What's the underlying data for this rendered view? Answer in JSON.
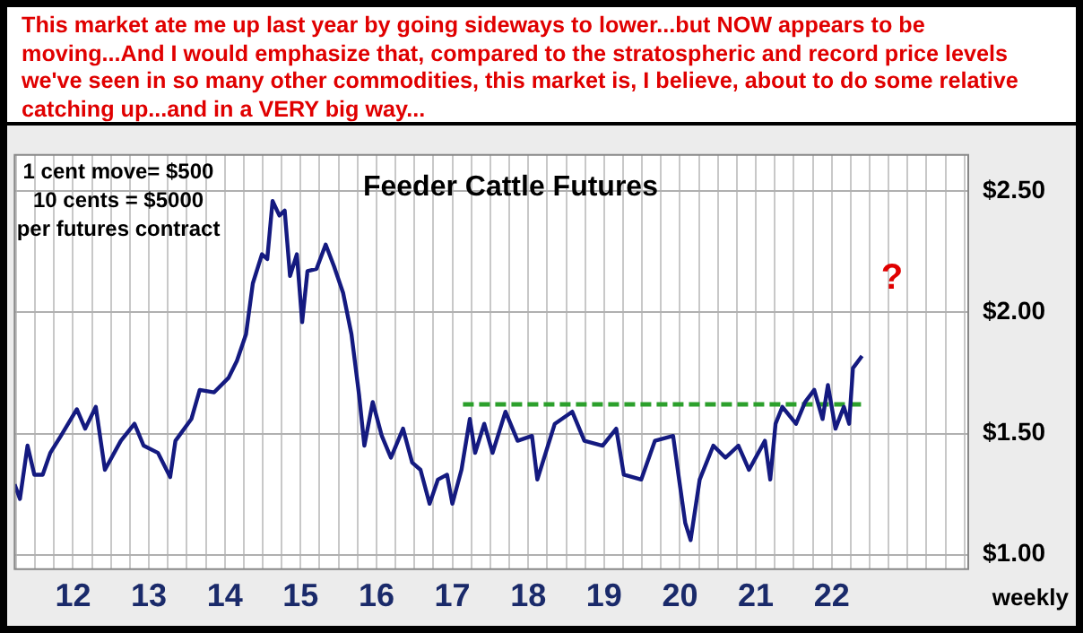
{
  "chart_data": {
    "type": "line",
    "title": "Feeder Cattle Futures",
    "annotations": [
      "This market ate me up last year by going sideways to lower...but NOW appears to be moving...And I would emphasize that, compared to the stratospheric and record price levels we've seen in so many other commodities, this market is, I believe, about to do some relative catching up...and in a VERY big way...",
      "1 cent move= $500",
      "10 cents = $5000",
      "per futures contract",
      "weekly",
      "?"
    ],
    "series": [
      {
        "color": "#141a80",
        "x": [
          2011.23,
          2011.3,
          2011.4,
          2011.49,
          2011.6,
          2011.7,
          2011.84,
          2012.05,
          2012.16,
          2012.3,
          2012.42,
          2012.63,
          2012.81,
          2012.93,
          2013.12,
          2013.28,
          2013.35,
          2013.56,
          2013.67,
          2013.86,
          2014.05,
          2014.16,
          2014.28,
          2014.37,
          2014.49,
          2014.56,
          2014.63,
          2014.72,
          2014.79,
          2014.86,
          2014.95,
          2015.02,
          2015.09,
          2015.21,
          2015.33,
          2015.44,
          2015.56,
          2015.67,
          2015.77,
          2015.84,
          2015.95,
          2016.07,
          2016.19,
          2016.35,
          2016.47,
          2016.58,
          2016.7,
          2016.81,
          2016.93,
          2017.0,
          2017.12,
          2017.23,
          2017.3,
          2017.42,
          2017.53,
          2017.7,
          2017.86,
          2018.05,
          2018.12,
          2018.35,
          2018.58,
          2018.74,
          2018.98,
          2019.16,
          2019.26,
          2019.49,
          2019.67,
          2019.91,
          2019.98,
          2020.07,
          2020.14,
          2020.26,
          2020.44,
          2020.6,
          2020.77,
          2020.91,
          2021.12,
          2021.19,
          2021.26,
          2021.35,
          2021.53,
          2021.65,
          2021.77,
          2021.88,
          2021.95,
          2022.05,
          2022.16,
          2022.23,
          2022.28,
          2022.4
        ],
        "values": [
          1.29,
          1.23,
          1.45,
          1.33,
          1.33,
          1.42,
          1.49,
          1.6,
          1.52,
          1.61,
          1.35,
          1.47,
          1.54,
          1.45,
          1.42,
          1.32,
          1.47,
          1.56,
          1.68,
          1.67,
          1.73,
          1.8,
          1.91,
          2.12,
          2.24,
          2.22,
          2.46,
          2.4,
          2.42,
          2.15,
          2.24,
          1.96,
          2.17,
          2.18,
          2.28,
          2.19,
          2.08,
          1.91,
          1.66,
          1.45,
          1.63,
          1.49,
          1.4,
          1.52,
          1.38,
          1.35,
          1.21,
          1.31,
          1.33,
          1.21,
          1.35,
          1.56,
          1.42,
          1.54,
          1.42,
          1.59,
          1.47,
          1.49,
          1.31,
          1.54,
          1.59,
          1.47,
          1.45,
          1.52,
          1.33,
          1.31,
          1.47,
          1.49,
          1.33,
          1.13,
          1.06,
          1.31,
          1.45,
          1.4,
          1.45,
          1.35,
          1.47,
          1.31,
          1.54,
          1.61,
          1.54,
          1.63,
          1.68,
          1.56,
          1.7,
          1.52,
          1.61,
          1.54,
          1.77,
          1.82
        ]
      },
      {
        "color": "#2ca02c",
        "line_style": "dashed",
        "x": [
          2017.14,
          2022.4
        ],
        "values": [
          1.62,
          1.62
        ]
      }
    ],
    "xlim": [
      2011.23,
      2023.8
    ],
    "ylim": [
      0.94,
      2.65
    ],
    "xticks": [
      {
        "value": 2011.25,
        "label": null
      },
      {
        "value": 2011.5,
        "label": null
      },
      {
        "value": 2011.75,
        "label": null
      },
      {
        "value": 2012,
        "label": "12"
      },
      {
        "value": 2012.25,
        "label": null
      },
      {
        "value": 2012.5,
        "label": null
      },
      {
        "value": 2012.75,
        "label": null
      },
      {
        "value": 2013,
        "label": "13"
      },
      {
        "value": 2013.25,
        "label": null
      },
      {
        "value": 2013.5,
        "label": null
      },
      {
        "value": 2013.75,
        "label": null
      },
      {
        "value": 2014,
        "label": "14"
      },
      {
        "value": 2014.25,
        "label": null
      },
      {
        "value": 2014.5,
        "label": null
      },
      {
        "value": 2014.75,
        "label": null
      },
      {
        "value": 2015,
        "label": "15"
      },
      {
        "value": 2015.25,
        "label": null
      },
      {
        "value": 2015.5,
        "label": null
      },
      {
        "value": 2015.75,
        "label": null
      },
      {
        "value": 2016,
        "label": "16"
      },
      {
        "value": 2016.25,
        "label": null
      },
      {
        "value": 2016.5,
        "label": null
      },
      {
        "value": 2016.75,
        "label": null
      },
      {
        "value": 2017,
        "label": "17"
      },
      {
        "value": 2017.25,
        "label": null
      },
      {
        "value": 2017.5,
        "label": null
      },
      {
        "value": 2017.75,
        "label": null
      },
      {
        "value": 2018,
        "label": "18"
      },
      {
        "value": 2018.25,
        "label": null
      },
      {
        "value": 2018.5,
        "label": null
      },
      {
        "value": 2018.75,
        "label": null
      },
      {
        "value": 2019,
        "label": "19"
      },
      {
        "value": 2019.25,
        "label": null
      },
      {
        "value": 2019.5,
        "label": null
      },
      {
        "value": 2019.75,
        "label": null
      },
      {
        "value": 2020,
        "label": "20"
      },
      {
        "value": 2020.25,
        "label": null
      },
      {
        "value": 2020.5,
        "label": null
      },
      {
        "value": 2020.75,
        "label": null
      },
      {
        "value": 2021,
        "label": "21"
      },
      {
        "value": 2021.25,
        "label": null
      },
      {
        "value": 2021.5,
        "label": null
      },
      {
        "value": 2021.75,
        "label": null
      },
      {
        "value": 2022,
        "label": "22"
      },
      {
        "value": 2022.25,
        "label": null
      },
      {
        "value": 2022.5,
        "label": null
      },
      {
        "value": 2022.75,
        "label": null
      },
      {
        "value": 2023,
        "label": null
      },
      {
        "value": 2023.25,
        "label": null
      },
      {
        "value": 2023.5,
        "label": null
      },
      {
        "value": 2023.75,
        "label": null
      }
    ],
    "yticks": [
      {
        "value": 1,
        "label": "$1.00"
      },
      {
        "value": 1.5,
        "label": "$1.50"
      },
      {
        "value": 2,
        "label": "$2.00"
      },
      {
        "value": 2.5,
        "label": "$2.50"
      }
    ],
    "grid": true,
    "legend": false,
    "marker": "none",
    "line_style": "solid"
  }
}
